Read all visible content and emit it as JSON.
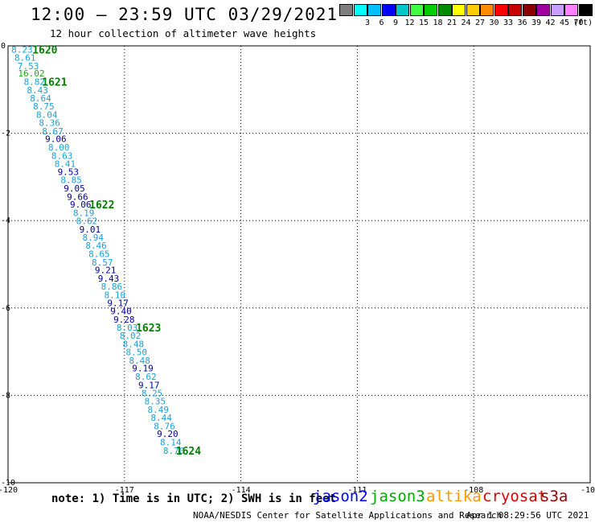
{
  "title": "12:00 – 23:59 UTC 03/29/2021",
  "subtitle": "12 hour collection of altimeter wave heights",
  "color_scale": {
    "unit": "(ft)",
    "bins": [
      {
        "label": "",
        "color": "#7f7f7f"
      },
      {
        "label": "3",
        "color": "#00ffff"
      },
      {
        "label": "6",
        "color": "#00bfff"
      },
      {
        "label": "9",
        "color": "#0000ff"
      },
      {
        "label": "12",
        "color": "#00c8c8"
      },
      {
        "label": "15",
        "color": "#40ff40"
      },
      {
        "label": "18",
        "color": "#00cc00"
      },
      {
        "label": "21",
        "color": "#008c00"
      },
      {
        "label": "24",
        "color": "#ffff00"
      },
      {
        "label": "27",
        "color": "#ffcc00"
      },
      {
        "label": "30",
        "color": "#ff8c00"
      },
      {
        "label": "33",
        "color": "#ff0000"
      },
      {
        "label": "36",
        "color": "#c80000"
      },
      {
        "label": "39",
        "color": "#8c0000"
      },
      {
        "label": "42",
        "color": "#a000a0"
      },
      {
        "label": "45",
        "color": "#c8a0ff"
      },
      {
        "label": "70",
        "color": "#ff80ff"
      },
      {
        "label": "",
        "color": "#000000"
      }
    ]
  },
  "chart_data": {
    "type": "scatter",
    "xlim": [
      -120,
      -105
    ],
    "ylim": [
      -10,
      0
    ],
    "x_ticks": [
      "-120",
      "-117",
      "-114",
      "-111",
      "-108",
      "-105"
    ],
    "y_ticks": [
      "0",
      "-2",
      "-4",
      "-6",
      "-8",
      "-10"
    ],
    "x_tick_values": [
      -120,
      -117,
      -114,
      -111,
      -108,
      -105
    ],
    "y_tick_values": [
      0,
      -2,
      -4,
      -6,
      -8,
      -10
    ],
    "grid": true,
    "track_colors": {
      "light": "#1ca0d8",
      "dark": "#00009a",
      "green": "#20a020",
      "time_label": "#008000"
    },
    "points": [
      {
        "lon": -119.64,
        "lat": -0.08,
        "swh": "8.23",
        "c": "light"
      },
      {
        "lon": -119.56,
        "lat": -0.27,
        "swh": "8.61",
        "c": "light"
      },
      {
        "lon": -119.48,
        "lat": -0.46,
        "swh": "7.53",
        "c": "light"
      },
      {
        "lon": -119.4,
        "lat": -0.63,
        "swh": "16.02",
        "c": "green"
      },
      {
        "lon": -119.32,
        "lat": -0.82,
        "swh": "8.82",
        "c": "light"
      },
      {
        "lon": -119.24,
        "lat": -1.01,
        "swh": "8.43",
        "c": "light"
      },
      {
        "lon": -119.16,
        "lat": -1.2,
        "swh": "8.64",
        "c": "light"
      },
      {
        "lon": -119.08,
        "lat": -1.38,
        "swh": "8.75",
        "c": "light"
      },
      {
        "lon": -119.0,
        "lat": -1.57,
        "swh": "8.04",
        "c": "light"
      },
      {
        "lon": -118.93,
        "lat": -1.76,
        "swh": "8.36",
        "c": "light"
      },
      {
        "lon": -118.85,
        "lat": -1.95,
        "swh": "8.67",
        "c": "light"
      },
      {
        "lon": -118.77,
        "lat": -2.13,
        "swh": "9.06",
        "c": "dark"
      },
      {
        "lon": -118.69,
        "lat": -2.32,
        "swh": "8.00",
        "c": "light"
      },
      {
        "lon": -118.61,
        "lat": -2.51,
        "swh": "8.63",
        "c": "light"
      },
      {
        "lon": -118.53,
        "lat": -2.7,
        "swh": "8.41",
        "c": "light"
      },
      {
        "lon": -118.45,
        "lat": -2.88,
        "swh": "9.53",
        "c": "dark"
      },
      {
        "lon": -118.37,
        "lat": -3.07,
        "swh": "8.85",
        "c": "light"
      },
      {
        "lon": -118.29,
        "lat": -3.26,
        "swh": "9.05",
        "c": "dark"
      },
      {
        "lon": -118.21,
        "lat": -3.45,
        "swh": "9.66",
        "c": "dark"
      },
      {
        "lon": -118.13,
        "lat": -3.63,
        "swh": "9.06",
        "c": "dark"
      },
      {
        "lon": -118.05,
        "lat": -3.82,
        "swh": "8.19",
        "c": "light"
      },
      {
        "lon": -117.97,
        "lat": -4.01,
        "swh": "8.62",
        "c": "light"
      },
      {
        "lon": -117.89,
        "lat": -4.2,
        "swh": "9.01",
        "c": "dark"
      },
      {
        "lon": -117.81,
        "lat": -4.38,
        "swh": "8.94",
        "c": "light"
      },
      {
        "lon": -117.73,
        "lat": -4.57,
        "swh": "8.46",
        "c": "light"
      },
      {
        "lon": -117.65,
        "lat": -4.76,
        "swh": "8.65",
        "c": "light"
      },
      {
        "lon": -117.57,
        "lat": -4.95,
        "swh": "8.57",
        "c": "light"
      },
      {
        "lon": -117.49,
        "lat": -5.13,
        "swh": "9.21",
        "c": "dark"
      },
      {
        "lon": -117.41,
        "lat": -5.32,
        "swh": "9.43",
        "c": "dark"
      },
      {
        "lon": -117.33,
        "lat": -5.51,
        "swh": "8.86",
        "c": "light"
      },
      {
        "lon": -117.25,
        "lat": -5.7,
        "swh": "8.10",
        "c": "light"
      },
      {
        "lon": -117.17,
        "lat": -5.88,
        "swh": "9.17",
        "c": "dark"
      },
      {
        "lon": -117.09,
        "lat": -6.07,
        "swh": "9.40",
        "c": "dark"
      },
      {
        "lon": -117.01,
        "lat": -6.26,
        "swh": "9.28",
        "c": "dark"
      },
      {
        "lon": -116.93,
        "lat": -6.45,
        "swh": "8.03",
        "c": "light"
      },
      {
        "lon": -116.85,
        "lat": -6.63,
        "swh": "8.02",
        "c": "light"
      },
      {
        "lon": -116.77,
        "lat": -6.82,
        "swh": "8.48",
        "c": "light"
      },
      {
        "lon": -116.69,
        "lat": -7.01,
        "swh": "8.50",
        "c": "light"
      },
      {
        "lon": -116.61,
        "lat": -7.2,
        "swh": "8.48",
        "c": "light"
      },
      {
        "lon": -116.53,
        "lat": -7.38,
        "swh": "9.19",
        "c": "dark"
      },
      {
        "lon": -116.45,
        "lat": -7.57,
        "swh": "8.62",
        "c": "light"
      },
      {
        "lon": -116.37,
        "lat": -7.76,
        "swh": "9.17",
        "c": "dark"
      },
      {
        "lon": -116.29,
        "lat": -7.95,
        "swh": "8.25",
        "c": "light"
      },
      {
        "lon": -116.21,
        "lat": -8.13,
        "swh": "8.35",
        "c": "light"
      },
      {
        "lon": -116.13,
        "lat": -8.32,
        "swh": "8.49",
        "c": "light"
      },
      {
        "lon": -116.05,
        "lat": -8.51,
        "swh": "8.44",
        "c": "light"
      },
      {
        "lon": -115.97,
        "lat": -8.7,
        "swh": "8.76",
        "c": "light"
      },
      {
        "lon": -115.89,
        "lat": -8.88,
        "swh": "9.20",
        "c": "dark"
      },
      {
        "lon": -115.81,
        "lat": -9.07,
        "swh": "8.14",
        "c": "light"
      },
      {
        "lon": -115.73,
        "lat": -9.26,
        "swh": "8.70",
        "c": "light"
      }
    ],
    "time_labels": [
      {
        "lon": -119.05,
        "lat": -0.08,
        "text": "1620"
      },
      {
        "lon": -118.8,
        "lat": -0.82,
        "text": "1621"
      },
      {
        "lon": -117.58,
        "lat": -3.63,
        "text": "1622"
      },
      {
        "lon": -116.38,
        "lat": -6.45,
        "text": "1623"
      },
      {
        "lon": -115.35,
        "lat": -9.26,
        "text": "1624"
      }
    ]
  },
  "footer": {
    "note": "note: 1) Time is in UTC; 2) SWH is in feet",
    "satellites": [
      {
        "name": "jason2",
        "color": "#0000ff"
      },
      {
        "name": "jason3",
        "color": "#00aa00"
      },
      {
        "name": "altika",
        "color": "#ff9900"
      },
      {
        "name": "cryosat",
        "color": "#dd0000"
      },
      {
        "name": "s3a",
        "color": "#990000"
      }
    ],
    "credit": "NOAA/NESDIS Center for Satellite Applications and Research",
    "timestamp": "Apr  1 08:29:56 UTC 2021"
  }
}
